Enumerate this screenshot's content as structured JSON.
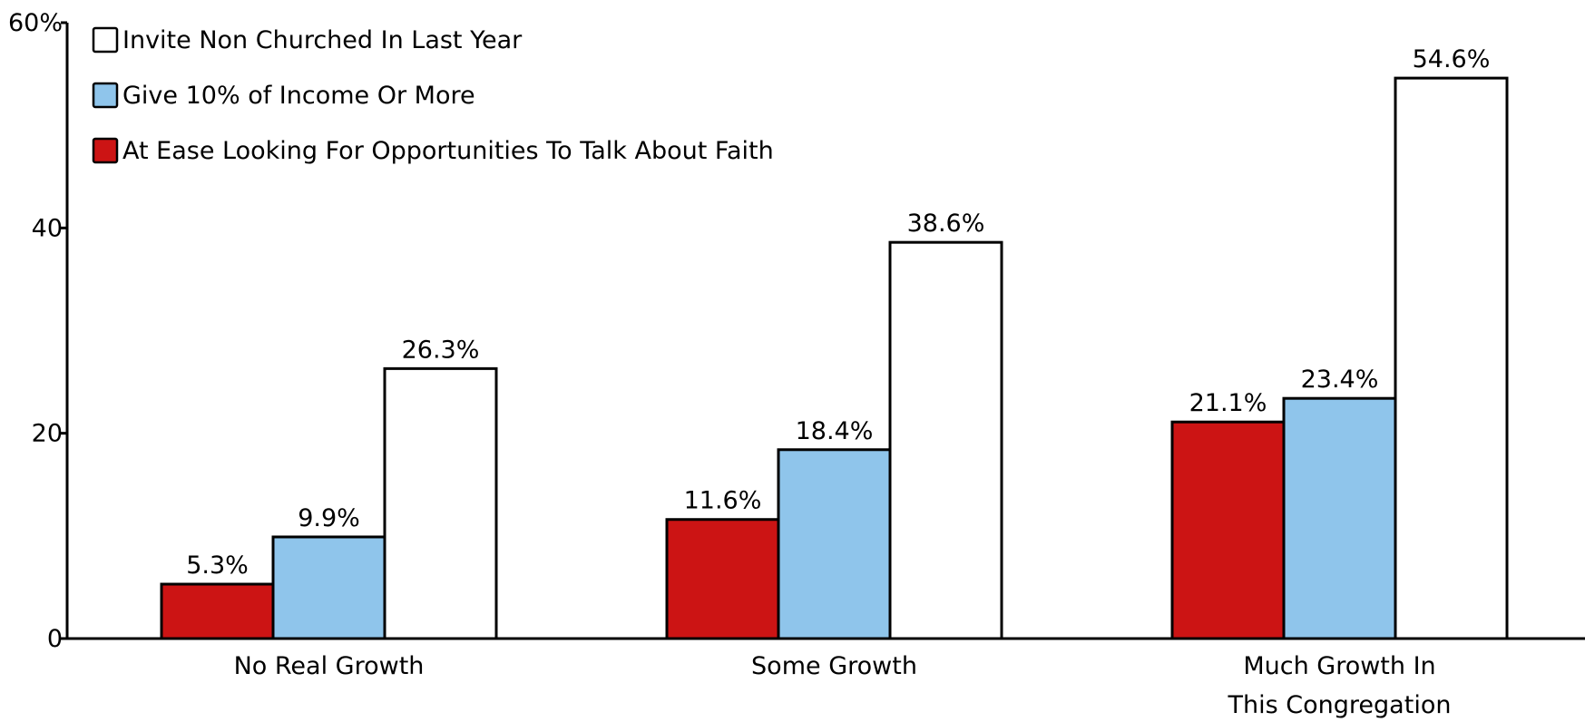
{
  "chart_data": {
    "type": "bar",
    "categories": [
      [
        "No Real Growth"
      ],
      [
        "Some Growth"
      ],
      [
        "Much Growth In",
        "This Congregation"
      ]
    ],
    "series": [
      {
        "name": "At Ease Looking For Opportunities To Talk About Faith",
        "color": "#cc1414",
        "values": [
          5.3,
          11.6,
          21.1
        ],
        "labels": [
          "5.3%",
          "11.6%",
          "21.1%"
        ]
      },
      {
        "name": "Give 10% of Income Or More",
        "color": "#8fc5eb",
        "values": [
          9.9,
          18.4,
          23.4
        ],
        "labels": [
          "9.9%",
          "18.4%",
          "23.4%"
        ]
      },
      {
        "name": "Invite Non Churched In Last Year",
        "color": "#ffffff",
        "values": [
          26.3,
          38.6,
          54.6
        ],
        "labels": [
          "26.3%",
          "38.6%",
          "54.6%"
        ]
      }
    ],
    "legend_order": [
      2,
      1,
      0
    ],
    "legend_position": "top-left",
    "yticks": [
      0,
      20,
      40,
      60
    ],
    "ytick_labels": [
      "0",
      "20",
      "40",
      "60%"
    ],
    "ylim": [
      0,
      60
    ],
    "title": "",
    "xlabel": "",
    "ylabel": "",
    "grid": false
  }
}
